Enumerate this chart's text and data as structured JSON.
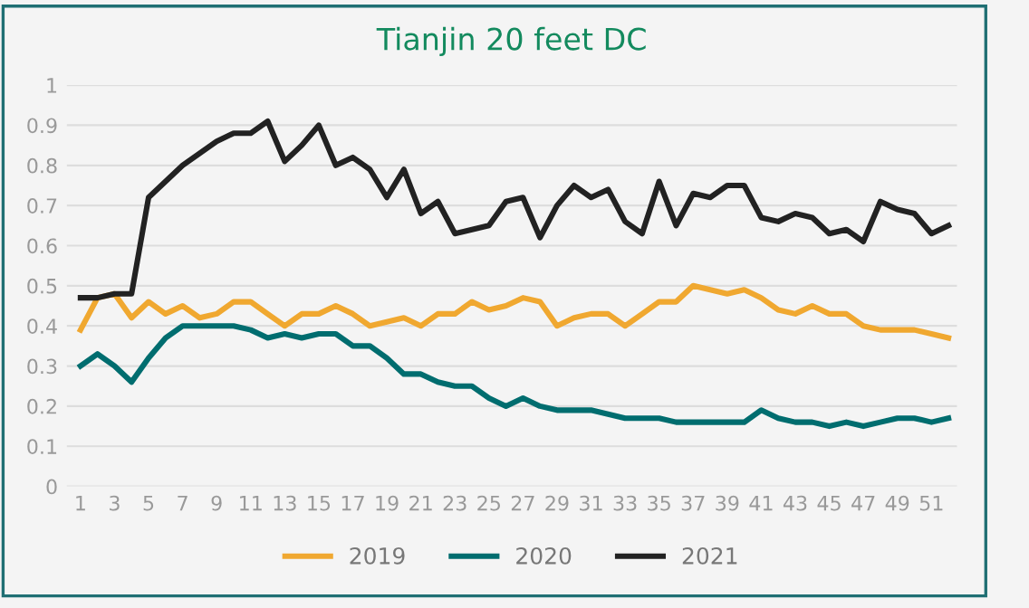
{
  "chart_data": {
    "type": "line",
    "title": "Tianjin 20 feet DC",
    "categories": [
      "1",
      null,
      "3",
      null,
      "5",
      null,
      "7",
      null,
      "9",
      null,
      "11",
      null,
      "13",
      null,
      "15",
      null,
      "17",
      null,
      "19",
      null,
      "21",
      null,
      "23",
      null,
      "25",
      null,
      "27",
      null,
      "29",
      null,
      "31",
      null,
      "33",
      null,
      "35",
      null,
      "37",
      null,
      "39",
      null,
      "41",
      null,
      "43",
      null,
      "45",
      null,
      "47",
      null,
      "49",
      null,
      "51",
      null
    ],
    "series": [
      {
        "name": "2019",
        "color": "#f0a830",
        "values": [
          0.39,
          0.47,
          0.48,
          0.42,
          0.46,
          0.43,
          0.45,
          0.42,
          0.43,
          0.46,
          0.46,
          0.43,
          0.4,
          0.43,
          0.43,
          0.45,
          0.43,
          0.4,
          0.41,
          0.42,
          0.4,
          0.43,
          0.43,
          0.46,
          0.44,
          0.45,
          0.47,
          0.46,
          0.4,
          0.42,
          0.43,
          0.43,
          0.4,
          0.43,
          0.46,
          0.46,
          0.5,
          0.49,
          0.48,
          0.49,
          0.47,
          0.44,
          0.43,
          0.45,
          0.43,
          0.43,
          0.4,
          0.39,
          0.39,
          0.39,
          0.38,
          0.37
        ]
      },
      {
        "name": "2020",
        "color": "#006d6f",
        "values": [
          0.3,
          0.33,
          0.3,
          0.26,
          0.32,
          0.37,
          0.4,
          0.4,
          0.4,
          0.4,
          0.39,
          0.37,
          0.38,
          0.37,
          0.38,
          0.38,
          0.35,
          0.35,
          0.32,
          0.28,
          0.28,
          0.26,
          0.25,
          0.25,
          0.22,
          0.2,
          0.22,
          0.2,
          0.19,
          0.19,
          0.19,
          0.18,
          0.17,
          0.17,
          0.17,
          0.16,
          0.16,
          0.16,
          0.16,
          0.16,
          0.19,
          0.17,
          0.16,
          0.16,
          0.15,
          0.16,
          0.15,
          0.16,
          0.17,
          0.17,
          0.16,
          0.17
        ]
      },
      {
        "name": "2021",
        "color": "#222222",
        "values": [
          0.47,
          0.47,
          0.48,
          0.48,
          0.72,
          0.76,
          0.8,
          0.83,
          0.86,
          0.88,
          0.88,
          0.91,
          0.81,
          0.85,
          0.9,
          0.8,
          0.82,
          0.79,
          0.72,
          0.79,
          0.68,
          0.71,
          0.63,
          0.64,
          0.65,
          0.71,
          0.72,
          0.62,
          0.7,
          0.75,
          0.72,
          0.74,
          0.66,
          0.63,
          0.76,
          0.65,
          0.73,
          0.72,
          0.75,
          0.75,
          0.67,
          0.66,
          0.68,
          0.67,
          0.63,
          0.64,
          0.61,
          0.71,
          0.69,
          0.68,
          0.63,
          0.65
        ]
      }
    ],
    "ylim": [
      0,
      1
    ],
    "yticks": [
      0,
      0.1,
      0.2,
      0.3,
      0.4,
      0.5,
      0.6,
      0.7,
      0.8,
      0.9,
      1
    ],
    "grid": "y",
    "legend": "bottom",
    "marker": "none",
    "line_style": "solid"
  }
}
